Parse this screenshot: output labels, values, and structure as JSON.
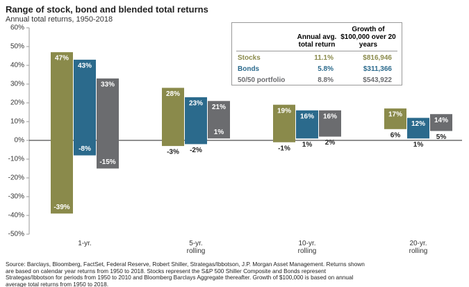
{
  "chart_data": {
    "type": "range-bar",
    "title": "Range of stock, bond and blended total returns",
    "subtitle": "Annual total returns, 1950-2018",
    "categories": [
      "1-yr.",
      "5-yr. rolling",
      "10-yr. rolling",
      "20-yr. rolling"
    ],
    "series": [
      {
        "name": "Stocks",
        "color": "#8a8a4b",
        "values": [
          47,
          28,
          19,
          17
        ],
        "lows": [
          -39,
          -3,
          -1,
          6
        ],
        "value_labels": [
          "47%",
          "28%",
          "19%",
          "17%"
        ],
        "low_labels": [
          "-39%",
          "-3%",
          "-1%",
          "6%"
        ]
      },
      {
        "name": "Bonds",
        "color": "#2b6a8c",
        "values": [
          43,
          23,
          16,
          12
        ],
        "lows": [
          -8,
          -2,
          1,
          1
        ],
        "value_labels": [
          "43%",
          "23%",
          "16%",
          "12%"
        ],
        "low_labels": [
          "-8%",
          "-2%",
          "1%",
          "1%"
        ]
      },
      {
        "name": "50/50 portfolio",
        "color": "#6b6c6f",
        "values": [
          33,
          21,
          16,
          14
        ],
        "lows": [
          -15,
          1,
          2,
          5
        ],
        "value_labels": [
          "33%",
          "21%",
          "16%",
          "14%"
        ],
        "low_labels": [
          "-15%",
          "1%",
          "2%",
          "5%"
        ]
      }
    ],
    "ylim": [
      -50,
      60
    ],
    "yticks": [
      {
        "value": -50,
        "label": "-50%"
      },
      {
        "value": -40,
        "label": "-40%"
      },
      {
        "value": -30,
        "label": "-30%"
      },
      {
        "value": -20,
        "label": "-20%"
      },
      {
        "value": -10,
        "label": "-10%"
      },
      {
        "value": 0,
        "label": "0%"
      },
      {
        "value": 10,
        "label": "10%"
      },
      {
        "value": 20,
        "label": "20%"
      },
      {
        "value": 30,
        "label": "30%"
      },
      {
        "value": 40,
        "label": "40%"
      },
      {
        "value": 50,
        "label": "50%"
      },
      {
        "value": 60,
        "label": "60%"
      }
    ],
    "footnote": "Source: Barclays, Bloomberg, FactSet, Federal Reserve, Robert Shiller, Strategas/Ibbotson, J.P. Morgan Asset Management. Returns shown are based on calendar year returns from 1950 to 2018. Stocks represent the S&P 500 Shiller Composite and Bonds represent Strategas/Ibbotson for periods from 1950 to 2010 and Bloomberg Barclays Aggregate thereafter. Growth of $100,000 is based on annual average total returns from 1950 to 2018."
  },
  "table": {
    "headers": [
      "Annual avg. total return",
      "Growth of $100,000 over 20 years"
    ],
    "rows": [
      [
        "Stocks",
        "11.1%",
        "$816,946"
      ],
      [
        "Bonds",
        "5.8%",
        "$311,366"
      ],
      [
        "50/50 portfolio",
        "8.8%",
        "$543,922"
      ]
    ]
  }
}
